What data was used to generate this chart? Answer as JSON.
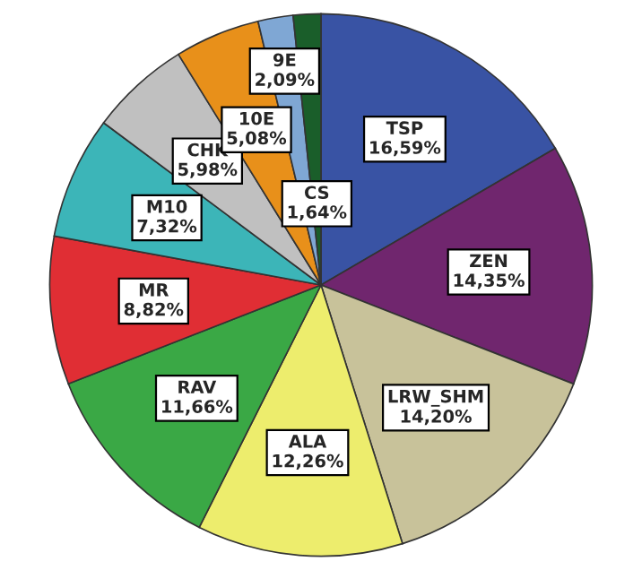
{
  "chart_data": {
    "type": "pie",
    "categories": [
      "TSP",
      "ZEN",
      "LRW_SHM",
      "ALA",
      "RAV",
      "MR",
      "M10",
      "CHK",
      "10E",
      "9E",
      "CS"
    ],
    "values": [
      16.59,
      14.35,
      14.2,
      12.26,
      11.66,
      8.82,
      7.32,
      5.98,
      5.08,
      2.09,
      1.64
    ],
    "value_labels": [
      "16,59%",
      "14,35%",
      "14,20%",
      "12,26%",
      "11,66%",
      "8,82%",
      "7,32%",
      "5,98%",
      "5,08%",
      "2,09%",
      "1,64%"
    ],
    "colors": [
      "#3953a4",
      "#70266e",
      "#c8c29a",
      "#eded6d",
      "#3aa845",
      "#e02e34",
      "#3cb5b8",
      "#c0c0c0",
      "#e8901a",
      "#7fa7d4",
      "#1a5e2a"
    ],
    "legend": false
  }
}
